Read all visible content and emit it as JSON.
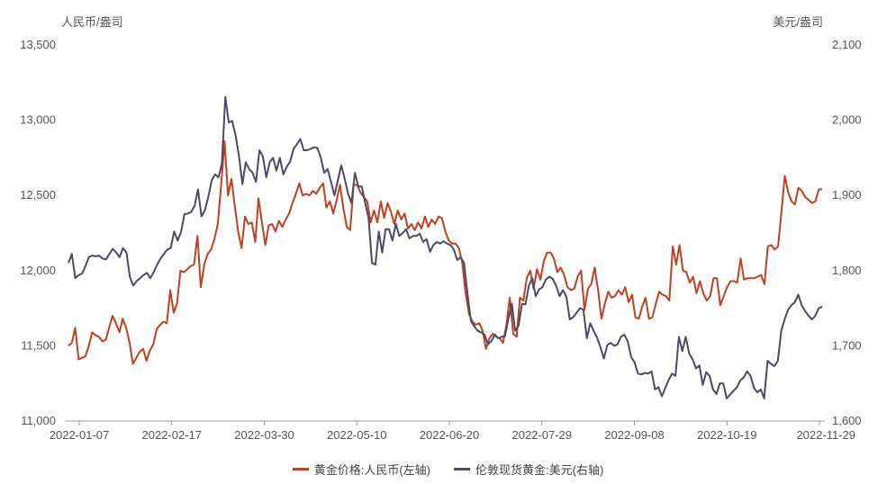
{
  "chart_data": {
    "type": "line",
    "left_axis": {
      "unit": "人民币/盎司",
      "ticks": [
        "11,000",
        "11,500",
        "12,000",
        "12,500",
        "13,000",
        "13,500"
      ],
      "range": [
        11000,
        13500
      ]
    },
    "right_axis": {
      "unit": "美元/盎司",
      "ticks": [
        "1,600",
        "1,700",
        "1,800",
        "1,900",
        "2,000",
        "2,100"
      ],
      "range": [
        1600,
        2100
      ]
    },
    "x_labels": [
      "2022-01-07",
      "2022-02-17",
      "2022-03-30",
      "2022-05-10",
      "2022-06-20",
      "2022-07-29",
      "2022-09-08",
      "2022-10-19",
      "2022-11-29"
    ],
    "legend": [
      "黄金价格:人民币(左轴)",
      "伦敦现货黄金:美元(右轴)"
    ],
    "colors": {
      "series1": "#c0401f",
      "series2": "#4b4a68",
      "axis": "#999999",
      "text": "#555555"
    },
    "series": [
      {
        "name": "黄金价格:人民币(左轴)",
        "axis": "left",
        "values": [
          11500,
          11520,
          11620,
          11410,
          11420,
          11430,
          11500,
          11590,
          11570,
          11560,
          11530,
          11540,
          11620,
          11700,
          11650,
          11590,
          11680,
          11620,
          11520,
          11380,
          11420,
          11460,
          11480,
          11400,
          11470,
          11510,
          11610,
          11640,
          11660,
          11650,
          11870,
          11720,
          11780,
          12000,
          11990,
          12010,
          12030,
          12040,
          12230,
          11890,
          12040,
          12110,
          12140,
          12210,
          12310,
          12580,
          12860,
          12500,
          12610,
          12430,
          12260,
          12150,
          12360,
          12310,
          12320,
          12190,
          12480,
          12320,
          12170,
          12300,
          12310,
          12260,
          12330,
          12290,
          12340,
          12380,
          12450,
          12510,
          12580,
          12500,
          12510,
          12500,
          12530,
          12510,
          12550,
          12580,
          12420,
          12460,
          12380,
          12470,
          12570,
          12410,
          12290,
          12270,
          12570,
          12570,
          12520,
          12490,
          12460,
          12320,
          12400,
          12320,
          12460,
          12350,
          12450,
          12390,
          12310,
          12400,
          12340,
          12380,
          12280,
          12310,
          12270,
          12320,
          12280,
          12360,
          12290,
          12340,
          12310,
          12360,
          12350,
          12260,
          12200,
          12180,
          12180,
          12150,
          12050,
          11850,
          11710,
          11660,
          11640,
          11650,
          11600,
          11480,
          11550,
          11580,
          11560,
          11550,
          11520,
          11640,
          11820,
          11580,
          11560,
          11820,
          11800,
          11950,
          12000,
          11880,
          12010,
          11940,
          12060,
          12120,
          12120,
          12080,
          11990,
          12020,
          11970,
          11890,
          11870,
          11880,
          11960,
          12000,
          11740,
          11880,
          11910,
          12020,
          11870,
          11680,
          11780,
          11860,
          11820,
          11830,
          11870,
          11840,
          11890,
          11790,
          11840,
          11690,
          11680,
          11760,
          11820,
          11680,
          11690,
          11780,
          11860,
          11840,
          11830,
          11800,
          12160,
          12040,
          12170,
          12000,
          11990,
          11920,
          11960,
          11850,
          11930,
          11850,
          11800,
          11830,
          11950,
          11950,
          11770,
          11830,
          11890,
          11930,
          11930,
          11920,
          12080,
          11940,
          11950,
          11950,
          11950,
          11960,
          11970,
          11910,
          12160,
          12170,
          12140,
          12160,
          12390,
          12630,
          12520,
          12460,
          12440,
          12550,
          12530,
          12490,
          12470,
          12450,
          12460,
          12540,
          12540
        ]
      },
      {
        "name": "伦敦现货黄金:美元(右轴)",
        "axis": "right",
        "values": [
          1810,
          1822,
          1790,
          1794,
          1796,
          1806,
          1818,
          1820,
          1819,
          1820,
          1816,
          1815,
          1822,
          1829,
          1824,
          1818,
          1830,
          1824,
          1792,
          1780,
          1786,
          1790,
          1794,
          1797,
          1790,
          1798,
          1808,
          1816,
          1822,
          1828,
          1830,
          1852,
          1840,
          1851,
          1875,
          1876,
          1878,
          1886,
          1908,
          1872,
          1880,
          1898,
          1920,
          1928,
          1924,
          1942,
          2031,
          1997,
          1999,
          1980,
          1952,
          1915,
          1944,
          1935,
          1930,
          1918,
          1960,
          1952,
          1924,
          1944,
          1950,
          1933,
          1950,
          1928,
          1938,
          1945,
          1962,
          1968,
          1975,
          1960,
          1960,
          1962,
          1964,
          1963,
          1950,
          1930,
          1935,
          1918,
          1900,
          1920,
          1940,
          1922,
          1902,
          1890,
          1930,
          1912,
          1912,
          1890,
          1870,
          1810,
          1808,
          1852,
          1824,
          1855,
          1855,
          1840,
          1862,
          1846,
          1850,
          1855,
          1843,
          1846,
          1846,
          1849,
          1838,
          1842,
          1825,
          1834,
          1838,
          1836,
          1839,
          1836,
          1834,
          1828,
          1814,
          1818,
          1810,
          1770,
          1733,
          1726,
          1720,
          1718,
          1715,
          1702,
          1706,
          1715,
          1710,
          1712,
          1713,
          1736,
          1756,
          1720,
          1727,
          1756,
          1755,
          1780,
          1790,
          1766,
          1775,
          1778,
          1788,
          1792,
          1789,
          1780,
          1766,
          1774,
          1765,
          1735,
          1738,
          1744,
          1750,
          1748,
          1710,
          1730,
          1720,
          1711,
          1698,
          1683,
          1701,
          1704,
          1700,
          1702,
          1712,
          1715,
          1706,
          1685,
          1678,
          1663,
          1662,
          1664,
          1663,
          1666,
          1642,
          1645,
          1633,
          1644,
          1655,
          1663,
          1660,
          1712,
          1693,
          1712,
          1690,
          1682,
          1670,
          1674,
          1648,
          1665,
          1660,
          1642,
          1636,
          1650,
          1650,
          1630,
          1635,
          1640,
          1645,
          1654,
          1658,
          1666,
          1660,
          1644,
          1638,
          1642,
          1630,
          1680,
          1676,
          1673,
          1680,
          1720,
          1735,
          1748,
          1754,
          1758,
          1768,
          1754,
          1746,
          1740,
          1735,
          1740,
          1750,
          1752
        ]
      }
    ]
  }
}
